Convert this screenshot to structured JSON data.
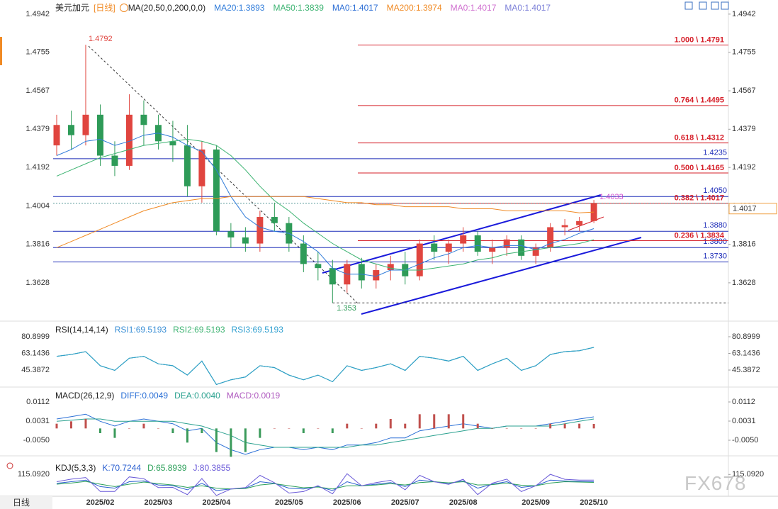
{
  "chart_data": [
    {
      "type": "candlestick",
      "title": "美元加元",
      "period": "[日线]",
      "indicator": "MA(20,50,0,200,0,0)",
      "categories": [
        null,
        null,
        null,
        "2025/02",
        null,
        null,
        null,
        "2025/03",
        null,
        null,
        null,
        "2025/04",
        null,
        null,
        null,
        null,
        "2025/05",
        null,
        null,
        null,
        "2025/06",
        null,
        null,
        null,
        "2025/07",
        null,
        null,
        null,
        "2025/08",
        null,
        null,
        null,
        null,
        "2025/09",
        null,
        null,
        null,
        "2025/10"
      ],
      "open": [
        1.43,
        1.44,
        1.435,
        1.445,
        1.425,
        1.42,
        1.445,
        1.44,
        1.432,
        1.43,
        1.41,
        1.428,
        1.388,
        1.385,
        1.382,
        1.395,
        1.392,
        1.382,
        1.372,
        1.37,
        1.362,
        1.372,
        1.364,
        1.369,
        1.372,
        1.366,
        1.382,
        1.378,
        1.382,
        1.386,
        1.378,
        1.38,
        1.384,
        1.376,
        1.38,
        1.39,
        1.391,
        1.393
      ],
      "high": [
        1.445,
        1.447,
        1.4792,
        1.45,
        1.432,
        1.455,
        1.452,
        1.445,
        1.442,
        1.44,
        1.432,
        1.43,
        1.392,
        1.39,
        1.398,
        1.402,
        1.395,
        1.386,
        1.378,
        1.374,
        1.374,
        1.375,
        1.372,
        1.376,
        1.378,
        1.384,
        1.386,
        1.384,
        1.39,
        1.388,
        1.384,
        1.386,
        1.386,
        1.382,
        1.392,
        1.394,
        1.395,
        1.4033
      ],
      "low": [
        1.425,
        1.428,
        1.43,
        1.42,
        1.415,
        1.418,
        1.43,
        1.428,
        1.422,
        1.405,
        1.402,
        1.386,
        1.38,
        1.378,
        1.378,
        1.388,
        1.378,
        1.368,
        1.364,
        1.353,
        1.358,
        1.36,
        1.36,
        1.364,
        1.362,
        1.364,
        1.374,
        1.372,
        1.378,
        1.376,
        1.372,
        1.376,
        1.374,
        1.372,
        1.378,
        1.386,
        1.388,
        1.392
      ],
      "close": [
        1.44,
        1.435,
        1.445,
        1.425,
        1.42,
        1.445,
        1.44,
        1.432,
        1.43,
        1.41,
        1.428,
        1.388,
        1.385,
        1.382,
        1.395,
        1.392,
        1.382,
        1.372,
        1.37,
        1.362,
        1.372,
        1.364,
        1.369,
        1.372,
        1.366,
        1.382,
        1.378,
        1.382,
        1.386,
        1.378,
        1.38,
        1.384,
        1.376,
        1.38,
        1.39,
        1.391,
        1.393,
        1.4017
      ],
      "up_color": "#e0453f",
      "down_color": "#2e9b58",
      "ylim": [
        1.3444,
        1.5011
      ],
      "yticks": [
        1.3628,
        1.3816,
        1.4004,
        1.4192,
        1.4379,
        1.4567,
        1.4755,
        1.4942
      ],
      "series": [
        {
          "name": "MA20:1.3893",
          "color": "#2f7bd9",
          "values": [
            1.425,
            1.428,
            1.432,
            1.433,
            1.43,
            1.432,
            1.435,
            1.436,
            1.434,
            1.43,
            1.427,
            1.418,
            1.405,
            1.395,
            1.39,
            1.388,
            1.387,
            1.383,
            1.378,
            1.37,
            1.367,
            1.367,
            1.366,
            1.369,
            1.369,
            1.372,
            1.375,
            1.377,
            1.38,
            1.381,
            1.38,
            1.381,
            1.381,
            1.379,
            1.382,
            1.384,
            1.387,
            1.3893
          ]
        },
        {
          "name": "MA50:1.3839",
          "color": "#3cb371",
          "values": [
            1.415,
            1.418,
            1.421,
            1.424,
            1.426,
            1.428,
            1.43,
            1.431,
            1.432,
            1.433,
            1.432,
            1.43,
            1.425,
            1.418,
            1.41,
            1.403,
            1.398,
            1.392,
            1.387,
            1.382,
            1.378,
            1.374,
            1.372,
            1.37,
            1.369,
            1.369,
            1.37,
            1.371,
            1.372,
            1.374,
            1.375,
            1.377,
            1.378,
            1.379,
            1.38,
            1.381,
            1.382,
            1.3839
          ]
        },
        {
          "name": "MA0:1.4017",
          "color": "#2c6ed5"
        },
        {
          "name": "MA200:1.3974",
          "color": "#f08a24",
          "values": [
            1.38,
            1.383,
            1.386,
            1.389,
            1.392,
            1.395,
            1.398,
            1.4,
            1.402,
            1.403,
            1.404,
            1.404,
            1.405,
            1.405,
            1.405,
            1.405,
            1.405,
            1.405,
            1.404,
            1.403,
            1.402,
            1.402,
            1.401,
            1.401,
            1.4,
            1.4,
            1.4,
            1.4,
            1.399,
            1.399,
            1.399,
            1.398,
            1.398,
            1.398,
            1.398,
            1.398,
            1.397,
            1.3974
          ]
        },
        {
          "name": "MA0:1.4017",
          "color": "#d070d0"
        },
        {
          "name": "MA0:1.4017",
          "color": "#7b7fd8"
        }
      ],
      "fib_color": "#d6202a",
      "fib_levels": [
        {
          "label": "1.000 \\ 1.4791",
          "value": 1.4791
        },
        {
          "label": "0.764 \\ 1.4495",
          "value": 1.4495
        },
        {
          "label": "0.618 \\ 1.4312",
          "value": 1.4312
        },
        {
          "label": "0.500 \\ 1.4165",
          "value": 1.4165
        },
        {
          "label": "0.382 \\ 1.4017",
          "value": 1.4017
        },
        {
          "label": "0.236 \\ 1.3834",
          "value": 1.3834
        }
      ],
      "level_color": "#1c2bb8",
      "levels": [
        1.4235,
        {
          "value": 1.405,
          "label": "1.4050"
        },
        {
          "value": 1.388,
          "label": "1.3880"
        },
        {
          "value": 1.38,
          "label": "1.3800"
        },
        {
          "value": 1.373,
          "label": "1.3730"
        }
      ],
      "last_price": 1.4017,
      "peak_label": 1.4792,
      "trough_label": 1.353,
      "last_high_label": 1.4033
    },
    {
      "type": "line",
      "title": "RSI(14,14,14)",
      "ylim": [
        28,
        96
      ],
      "yticks": [
        45.3872,
        63.1436,
        80.8999
      ],
      "series": [
        {
          "name": "RSI1:69.5193",
          "color": "#3a8fd6",
          "values": [
            60,
            62,
            65,
            50,
            45,
            58,
            60,
            52,
            50,
            40,
            55,
            30,
            35,
            38,
            50,
            48,
            40,
            35,
            40,
            33,
            50,
            45,
            48,
            52,
            45,
            60,
            58,
            55,
            60,
            45,
            52,
            58,
            45,
            50,
            62,
            65,
            66,
            69.5193
          ]
        },
        {
          "name": "RSI2:69.5193",
          "color": "#3cb371",
          "values": [
            60,
            62,
            65,
            50,
            45,
            58,
            60,
            52,
            50,
            40,
            55,
            30,
            35,
            38,
            50,
            48,
            40,
            35,
            40,
            33,
            50,
            45,
            48,
            52,
            45,
            60,
            58,
            55,
            60,
            45,
            52,
            58,
            45,
            50,
            62,
            65,
            66,
            69.5193
          ]
        },
        {
          "name": "RSI3:69.5193",
          "color": "#2f9fd0",
          "values": [
            60,
            62,
            65,
            50,
            45,
            58,
            60,
            52,
            50,
            40,
            55,
            30,
            35,
            38,
            50,
            48,
            40,
            35,
            40,
            33,
            50,
            45,
            48,
            52,
            45,
            60,
            58,
            55,
            60,
            45,
            52,
            58,
            45,
            50,
            62,
            65,
            66,
            69.5193
          ]
        }
      ]
    },
    {
      "type": "macd",
      "title": "MACD(26,12,9)",
      "ylim": [
        -0.0107,
        0.0169
      ],
      "yticks": [
        {
          "value": -0.005,
          "label": "-0.0050"
        },
        0.0031,
        0.0112
      ],
      "up_color": "#c0504d",
      "down_color": "#3a9a5a",
      "series": [
        {
          "name": "DIFF:0.0049",
          "color": "#2a6fd6",
          "values": [
            0.004,
            0.005,
            0.006,
            0.003,
            0.001,
            0.003,
            0.004,
            0.003,
            0.002,
            -0.001,
            0.0,
            -0.006,
            -0.009,
            -0.011,
            -0.009,
            -0.008,
            -0.008,
            -0.009,
            -0.008,
            -0.009,
            -0.007,
            -0.007,
            -0.006,
            -0.004,
            -0.004,
            -0.001,
            0.0,
            0.001,
            0.002,
            0.001,
            0.0,
            0.001,
            0.001,
            0.001,
            0.002,
            0.003,
            0.004,
            0.0049
          ]
        },
        {
          "name": "DEA:0.0040",
          "color": "#2aa18f",
          "values": [
            0.003,
            0.0035,
            0.004,
            0.004,
            0.003,
            0.003,
            0.003,
            0.003,
            0.003,
            0.002,
            0.001,
            -0.001,
            -0.003,
            -0.006,
            -0.007,
            -0.008,
            -0.008,
            -0.008,
            -0.008,
            -0.008,
            -0.008,
            -0.007,
            -0.007,
            -0.006,
            -0.005,
            -0.004,
            -0.003,
            -0.002,
            -0.001,
            0.0,
            0.0,
            0.001,
            0.001,
            0.001,
            0.001,
            0.002,
            0.003,
            0.004
          ]
        },
        {
          "name": "MACD:0.0019",
          "color": "#b05cc0",
          "kind": "bar",
          "values": [
            0.002,
            0.003,
            0.004,
            -0.002,
            -0.004,
            0,
            0.002,
            0,
            -0.002,
            -0.006,
            -0.002,
            -0.01,
            -0.012,
            -0.01,
            -0.004,
            0,
            0,
            -0.002,
            0,
            -0.002,
            0.002,
            0,
            0.002,
            0.004,
            0.002,
            0.006,
            0.006,
            0.006,
            0.006,
            0.002,
            0,
            0,
            0,
            0,
            0.002,
            0.002,
            0.002,
            0.0019
          ]
        }
      ]
    },
    {
      "type": "line",
      "title": "KDJ(5,3,3)",
      "ylim": [
        -20,
        200
      ],
      "yticks": [
        {
          "value": 115.092,
          "label": "115.0920"
        }
      ],
      "series": [
        {
          "name": "K:70.7244",
          "color": "#2a5fd0",
          "values": [
            60,
            70,
            80,
            40,
            30,
            70,
            75,
            50,
            45,
            20,
            60,
            15,
            25,
            30,
            70,
            60,
            30,
            25,
            40,
            15,
            70,
            45,
            55,
            65,
            40,
            80,
            70,
            60,
            75,
            30,
            55,
            70,
            35,
            45,
            80,
            75,
            72,
            70.7244
          ]
        },
        {
          "name": "D:65.8939",
          "color": "#2ca05a",
          "values": [
            55,
            62,
            72,
            55,
            40,
            55,
            68,
            58,
            50,
            35,
            45,
            30,
            25,
            28,
            50,
            58,
            45,
            33,
            37,
            25,
            45,
            45,
            50,
            58,
            50,
            65,
            70,
            63,
            70,
            50,
            52,
            62,
            48,
            45,
            62,
            70,
            68,
            65.8939
          ]
        },
        {
          "name": "J:80.3855",
          "color": "#6a5ad8",
          "values": [
            70,
            86,
            96,
            10,
            10,
            100,
            89,
            34,
            35,
            -10,
            90,
            -15,
            25,
            34,
            110,
            64,
            0,
            9,
            46,
            -5,
            120,
            45,
            65,
            79,
            20,
            110,
            70,
            54,
            85,
            -10,
            61,
            86,
            9,
            45,
            116,
            85,
            80,
            80.3855
          ]
        }
      ]
    }
  ],
  "footer": {
    "period_button": "日线",
    "watermark": "FX678"
  }
}
